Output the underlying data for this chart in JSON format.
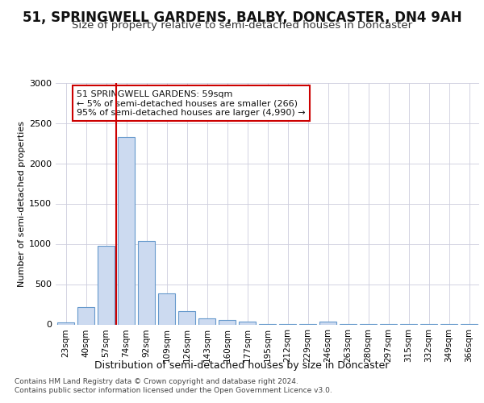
{
  "title": "51, SPRINGWELL GARDENS, BALBY, DONCASTER, DN4 9AH",
  "subtitle": "Size of property relative to semi-detached houses in Doncaster",
  "xlabel": "Distribution of semi-detached houses by size in Doncaster",
  "ylabel": "Number of semi-detached properties",
  "categories": [
    "23sqm",
    "40sqm",
    "57sqm",
    "74sqm",
    "92sqm",
    "109sqm",
    "126sqm",
    "143sqm",
    "160sqm",
    "177sqm",
    "195sqm",
    "212sqm",
    "229sqm",
    "246sqm",
    "263sqm",
    "280sqm",
    "297sqm",
    "315sqm",
    "332sqm",
    "349sqm",
    "366sqm"
  ],
  "values": [
    30,
    220,
    980,
    2330,
    1040,
    390,
    165,
    80,
    55,
    40,
    8,
    5,
    5,
    40,
    5,
    5,
    5,
    5,
    5,
    5,
    5
  ],
  "bar_color": "#ccdaf0",
  "bar_edge_color": "#6699cc",
  "grid_color": "#ccccdd",
  "annotation_text": "51 SPRINGWELL GARDENS: 59sqm\n← 5% of semi-detached houses are smaller (266)\n95% of semi-detached houses are larger (4,990) →",
  "annotation_box_color": "#ffffff",
  "annotation_box_edge": "#cc0000",
  "vline_x": 2.5,
  "vline_color": "#cc0000",
  "footer_line1": "Contains HM Land Registry data © Crown copyright and database right 2024.",
  "footer_line2": "Contains public sector information licensed under the Open Government Licence v3.0.",
  "ylim": [
    0,
    3000
  ],
  "title_fontsize": 12,
  "subtitle_fontsize": 9.5,
  "background_color": "#ffffff"
}
